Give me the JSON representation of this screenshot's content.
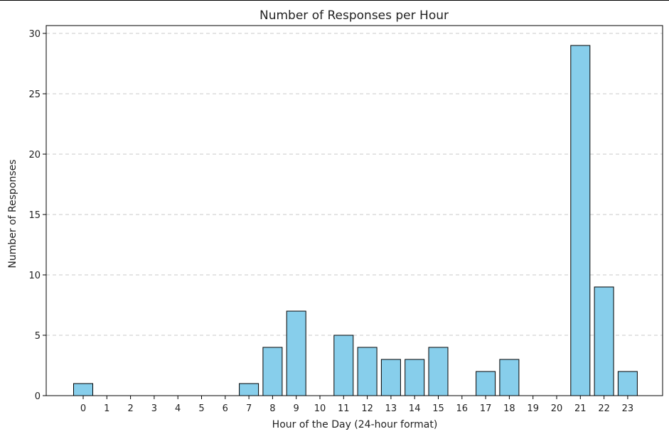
{
  "chart_data": {
    "type": "bar",
    "title": "Number of Responses per Hour",
    "xlabel": "Hour of the Day (24-hour format)",
    "ylabel": "Number of Responses",
    "categories": [
      "0",
      "1",
      "2",
      "3",
      "4",
      "5",
      "6",
      "7",
      "8",
      "9",
      "10",
      "11",
      "12",
      "13",
      "14",
      "15",
      "16",
      "17",
      "18",
      "19",
      "20",
      "21",
      "22",
      "23"
    ],
    "values": [
      1,
      0,
      0,
      0,
      0,
      0,
      0,
      1,
      4,
      7,
      0,
      5,
      4,
      3,
      3,
      4,
      0,
      2,
      3,
      0,
      0,
      29,
      9,
      2
    ],
    "ylim": [
      0,
      30
    ],
    "yticks": [
      0,
      5,
      10,
      15,
      20,
      25,
      30
    ],
    "grid": "y-dashed",
    "bar_color": "#87ceeb",
    "edge_color": "#000000",
    "grid_color": "#c8c8c8"
  }
}
